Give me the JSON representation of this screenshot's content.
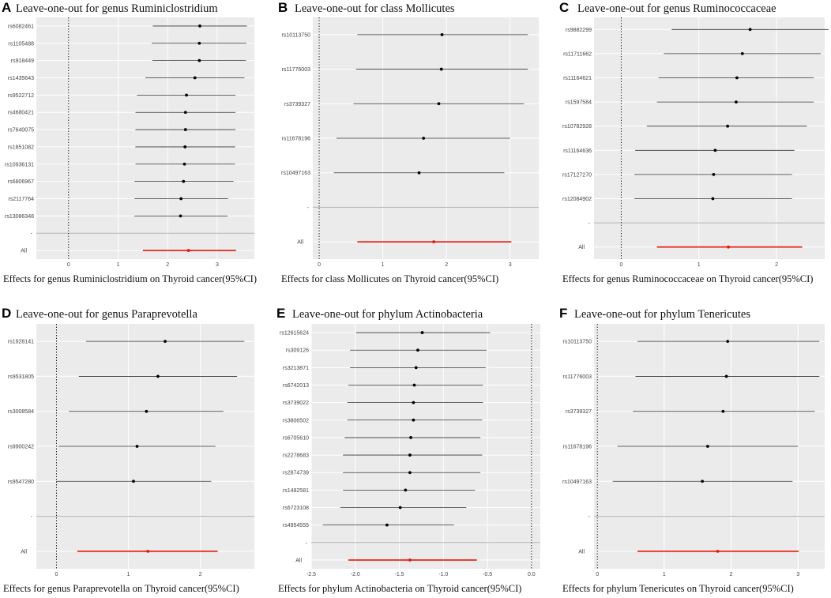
{
  "chart_data": [
    {
      "type": "forest",
      "panel": "A",
      "title": "Leave-one-out for genus Ruminiclostridium",
      "xlabel": "Effects for genus Ruminiclostridium on Thyroid cancer(95%CI)",
      "xlim": [
        -0.65,
        3.75
      ],
      "xticks": [
        0,
        1,
        2,
        3
      ],
      "ref_line": 0,
      "snps": [
        {
          "name": "rs6082461",
          "est": 2.65,
          "lo": 1.7,
          "hi": 3.6
        },
        {
          "name": "rs1105488",
          "est": 2.64,
          "lo": 1.68,
          "hi": 3.59
        },
        {
          "name": "rs918449",
          "est": 2.64,
          "lo": 1.69,
          "hi": 3.58
        },
        {
          "name": "rs1435643",
          "est": 2.55,
          "lo": 1.55,
          "hi": 3.55
        },
        {
          "name": "rs9522712",
          "est": 2.38,
          "lo": 1.38,
          "hi": 3.37
        },
        {
          "name": "rs4680421",
          "est": 2.36,
          "lo": 1.35,
          "hi": 3.37
        },
        {
          "name": "rs7640075",
          "est": 2.36,
          "lo": 1.35,
          "hi": 3.37
        },
        {
          "name": "rs1851082",
          "est": 2.35,
          "lo": 1.35,
          "hi": 3.36
        },
        {
          "name": "rs10936131",
          "est": 2.34,
          "lo": 1.35,
          "hi": 3.36
        },
        {
          "name": "rs6806967",
          "est": 2.32,
          "lo": 1.33,
          "hi": 3.33
        },
        {
          "name": "rs2117764",
          "est": 2.27,
          "lo": 1.33,
          "hi": 3.22
        },
        {
          "name": "rs13086348",
          "est": 2.26,
          "lo": 1.33,
          "hi": 3.21
        }
      ],
      "overall": {
        "name": "All",
        "est": 2.42,
        "lo": 1.5,
        "hi": 3.38
      }
    },
    {
      "type": "forest",
      "panel": "B",
      "title": "Leave-one-out for class Mollicutes",
      "xlabel": "Effects for class Mollicutes on Thyroid cancer(95%CI)",
      "xlim": [
        -0.1,
        3.45
      ],
      "xticks": [
        0,
        1,
        2,
        3
      ],
      "ref_line": 0,
      "snps": [
        {
          "name": "rs10113750",
          "est": 1.93,
          "lo": 0.6,
          "hi": 3.28
        },
        {
          "name": "rs11776003",
          "est": 1.92,
          "lo": 0.58,
          "hi": 3.28
        },
        {
          "name": "rs3739327",
          "est": 1.88,
          "lo": 0.54,
          "hi": 3.22
        },
        {
          "name": "rs11678196",
          "est": 1.64,
          "lo": 0.27,
          "hi": 3.0
        },
        {
          "name": "rs10497163",
          "est": 1.57,
          "lo": 0.23,
          "hi": 2.91
        }
      ],
      "overall": {
        "name": "All",
        "est": 1.8,
        "lo": 0.6,
        "hi": 3.02
      }
    },
    {
      "type": "forest",
      "panel": "C",
      "title": "Leave-one-out for genus Ruminococcaceae",
      "xlabel": "Effects for genus Ruminococcaceae on Thyroid cancer(95%CI)",
      "xlim": [
        -0.35,
        2.62
      ],
      "xticks": [
        0,
        1,
        2
      ],
      "ref_line": 0,
      "snps": [
        {
          "name": "rs9882299",
          "est": 1.66,
          "lo": 0.65,
          "hi": 2.67
        },
        {
          "name": "rs11711662",
          "est": 1.56,
          "lo": 0.55,
          "hi": 2.57
        },
        {
          "name": "rs11164621",
          "est": 1.49,
          "lo": 0.48,
          "hi": 2.48
        },
        {
          "name": "rs1597584",
          "est": 1.48,
          "lo": 0.46,
          "hi": 2.48
        },
        {
          "name": "rs10782928",
          "est": 1.37,
          "lo": 0.33,
          "hi": 2.39
        },
        {
          "name": "rs11164636",
          "est": 1.21,
          "lo": 0.18,
          "hi": 2.23
        },
        {
          "name": "rs17127270",
          "est": 1.19,
          "lo": 0.17,
          "hi": 2.2
        },
        {
          "name": "rs12084902",
          "est": 1.18,
          "lo": 0.17,
          "hi": 2.2
        }
      ],
      "overall": {
        "name": "All",
        "est": 1.38,
        "lo": 0.46,
        "hi": 2.33
      }
    },
    {
      "type": "forest",
      "panel": "D",
      "title": "Leave-one-out for genus Paraprevotella",
      "xlabel": "Effects for genus Paraprevotella on Thyroid cancer(95%CI)",
      "xlim": [
        -0.28,
        2.75
      ],
      "xticks": [
        0,
        1,
        2
      ],
      "ref_line": 0,
      "snps": [
        {
          "name": "rs1928141",
          "est": 1.51,
          "lo": 0.41,
          "hi": 2.61
        },
        {
          "name": "rs9531805",
          "est": 1.41,
          "lo": 0.31,
          "hi": 2.51
        },
        {
          "name": "rs3008584",
          "est": 1.25,
          "lo": 0.17,
          "hi": 2.32
        },
        {
          "name": "rs9900242",
          "est": 1.12,
          "lo": 0.03,
          "hi": 2.21
        },
        {
          "name": "rs9547280",
          "est": 1.07,
          "lo": 0.0,
          "hi": 2.15
        }
      ],
      "overall": {
        "name": "All",
        "est": 1.27,
        "lo": 0.29,
        "hi": 2.24
      }
    },
    {
      "type": "forest",
      "panel": "E",
      "title": "Leave-one-out for phylum Actinobacteria",
      "xlabel": "Effects for phylum Actinobacteria on Thyroid cancer(95%CI)",
      "xlim": [
        -2.5,
        0.1
      ],
      "xticks": [
        -2.5,
        -2.0,
        -1.5,
        -1.0,
        -0.5,
        0.0
      ],
      "xtick_labels": [
        "-2.5",
        "-2.0",
        "-1.5",
        "-1.0",
        "-0.5",
        "0.0"
      ],
      "ref_line": 0,
      "snps": [
        {
          "name": "rs12615624",
          "est": -1.24,
          "lo": -1.99,
          "hi": -0.47
        },
        {
          "name": "rs309126",
          "est": -1.29,
          "lo": -2.06,
          "hi": -0.51
        },
        {
          "name": "rs3213871",
          "est": -1.31,
          "lo": -2.06,
          "hi": -0.52
        },
        {
          "name": "rs6742013",
          "est": -1.33,
          "lo": -2.08,
          "hi": -0.55
        },
        {
          "name": "rs3739022",
          "est": -1.34,
          "lo": -2.09,
          "hi": -0.55
        },
        {
          "name": "rs3806502",
          "est": -1.34,
          "lo": -2.09,
          "hi": -0.56
        },
        {
          "name": "rs6705610",
          "est": -1.37,
          "lo": -2.12,
          "hi": -0.58
        },
        {
          "name": "rs2278683",
          "est": -1.38,
          "lo": -2.14,
          "hi": -0.56
        },
        {
          "name": "rs2874739",
          "est": -1.38,
          "lo": -2.14,
          "hi": -0.58
        },
        {
          "name": "rs1482581",
          "est": -1.43,
          "lo": -2.14,
          "hi": -0.64
        },
        {
          "name": "rs6723108",
          "est": -1.49,
          "lo": -2.17,
          "hi": -0.74
        },
        {
          "name": "rs4954555",
          "est": -1.64,
          "lo": -2.37,
          "hi": -0.88
        }
      ],
      "overall": {
        "name": "All",
        "est": -1.38,
        "lo": -2.08,
        "hi": -0.62
      }
    },
    {
      "type": "forest",
      "panel": "F",
      "title": "Leave-one-out for phylum Tenericutes",
      "xlabel": "Effects for phylum Tenericutes on Thyroid cancer(95%CI)",
      "xlim": [
        -0.05,
        3.4
      ],
      "xticks": [
        0,
        1,
        2,
        3
      ],
      "ref_line": 0,
      "snps": [
        {
          "name": "rs10113750",
          "est": 1.95,
          "lo": 0.6,
          "hi": 3.32
        },
        {
          "name": "rs11776003",
          "est": 1.93,
          "lo": 0.57,
          "hi": 3.32
        },
        {
          "name": "rs3739327",
          "est": 1.88,
          "lo": 0.53,
          "hi": 3.25
        },
        {
          "name": "rs11678196",
          "est": 1.65,
          "lo": 0.3,
          "hi": 3.0
        },
        {
          "name": "rs10497163",
          "est": 1.57,
          "lo": 0.23,
          "hi": 2.92
        }
      ],
      "overall": {
        "name": "All",
        "est": 1.8,
        "lo": 0.6,
        "hi": 3.01
      }
    }
  ]
}
